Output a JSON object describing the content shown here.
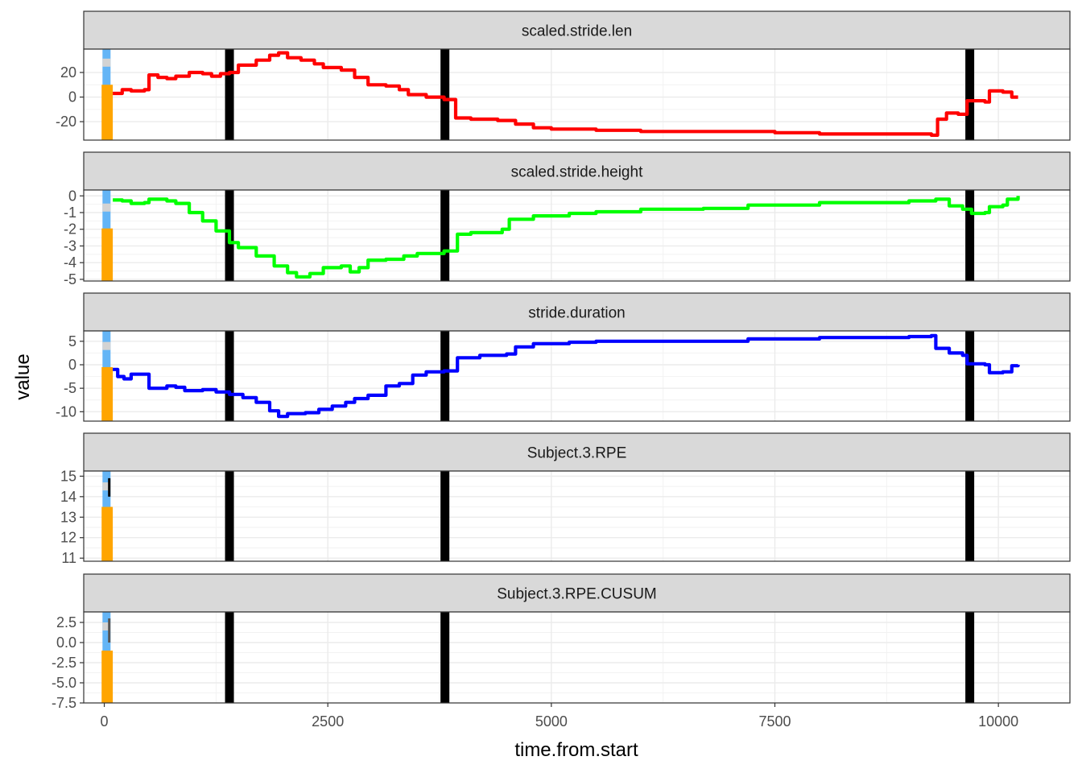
{
  "chart_data": {
    "type": "line",
    "layout": "faceted, vertical strips sharing the x axis",
    "xlabel": "time.from.start",
    "ylabel": "value",
    "x_ticks": [
      0,
      2500,
      5000,
      7500,
      10000
    ],
    "xlim": [
      -230,
      10800
    ],
    "grid": true,
    "theme": "bw",
    "legend": "none",
    "vertical_lines": {
      "color": "#000000",
      "x": [
        1400,
        3810,
        9680
      ]
    },
    "highlight_bars": {
      "blue": {
        "color": "#64b5f6",
        "x": 25
      },
      "orange": {
        "color": "#ffa500",
        "x_from": -30,
        "x_to": 95
      }
    },
    "panels": [
      {
        "title": "scaled.stride.len",
        "color": "#ff0000",
        "ylim": [
          -35,
          39
        ],
        "y_ticks": [
          20,
          0,
          -20
        ],
        "orange_top": 10,
        "marker": 28,
        "series": [
          {
            "x": 95,
            "y": 3
          },
          {
            "x": 200,
            "y": 6
          },
          {
            "x": 300,
            "y": 5
          },
          {
            "x": 450,
            "y": 6
          },
          {
            "x": 500,
            "y": 18
          },
          {
            "x": 600,
            "y": 16
          },
          {
            "x": 700,
            "y": 15
          },
          {
            "x": 800,
            "y": 17
          },
          {
            "x": 950,
            "y": 20
          },
          {
            "x": 1100,
            "y": 19
          },
          {
            "x": 1200,
            "y": 17
          },
          {
            "x": 1300,
            "y": 19
          },
          {
            "x": 1400,
            "y": 20
          },
          {
            "x": 1500,
            "y": 26
          },
          {
            "x": 1700,
            "y": 30
          },
          {
            "x": 1850,
            "y": 34
          },
          {
            "x": 1950,
            "y": 36
          },
          {
            "x": 2050,
            "y": 32
          },
          {
            "x": 2200,
            "y": 30
          },
          {
            "x": 2350,
            "y": 27
          },
          {
            "x": 2450,
            "y": 24
          },
          {
            "x": 2650,
            "y": 22
          },
          {
            "x": 2800,
            "y": 16
          },
          {
            "x": 2950,
            "y": 10
          },
          {
            "x": 3150,
            "y": 9
          },
          {
            "x": 3300,
            "y": 6
          },
          {
            "x": 3400,
            "y": 2
          },
          {
            "x": 3600,
            "y": 0
          },
          {
            "x": 3800,
            "y": -2
          },
          {
            "x": 3930,
            "y": -17
          },
          {
            "x": 4100,
            "y": -18
          },
          {
            "x": 4400,
            "y": -19
          },
          {
            "x": 4600,
            "y": -22
          },
          {
            "x": 4800,
            "y": -25
          },
          {
            "x": 5000,
            "y": -26
          },
          {
            "x": 5500,
            "y": -27
          },
          {
            "x": 6000,
            "y": -28
          },
          {
            "x": 7000,
            "y": -28
          },
          {
            "x": 7500,
            "y": -29
          },
          {
            "x": 8000,
            "y": -30
          },
          {
            "x": 8500,
            "y": -30
          },
          {
            "x": 9000,
            "y": -30
          },
          {
            "x": 9250,
            "y": -31
          },
          {
            "x": 9320,
            "y": -18
          },
          {
            "x": 9420,
            "y": -13
          },
          {
            "x": 9550,
            "y": -14
          },
          {
            "x": 9650,
            "y": -3
          },
          {
            "x": 9850,
            "y": -4
          },
          {
            "x": 9900,
            "y": 5
          },
          {
            "x": 10050,
            "y": 4
          },
          {
            "x": 10150,
            "y": 0
          },
          {
            "x": 10220,
            "y": 0
          }
        ]
      },
      {
        "title": "scaled.stride.height",
        "color": "#00ff00",
        "ylim": [
          -5.1,
          0.35
        ],
        "y_ticks": [
          0,
          -1,
          -2,
          -3,
          -4,
          -5
        ],
        "orange_top": -1.95,
        "marker": -0.7,
        "series": [
          {
            "x": 95,
            "y": -0.25
          },
          {
            "x": 200,
            "y": -0.3
          },
          {
            "x": 300,
            "y": -0.45
          },
          {
            "x": 450,
            "y": -0.4
          },
          {
            "x": 500,
            "y": -0.2
          },
          {
            "x": 700,
            "y": -0.3
          },
          {
            "x": 800,
            "y": -0.45
          },
          {
            "x": 950,
            "y": -1.0
          },
          {
            "x": 1100,
            "y": -1.5
          },
          {
            "x": 1250,
            "y": -2.1
          },
          {
            "x": 1400,
            "y": -2.8
          },
          {
            "x": 1500,
            "y": -3.1
          },
          {
            "x": 1700,
            "y": -3.6
          },
          {
            "x": 1900,
            "y": -4.2
          },
          {
            "x": 2050,
            "y": -4.6
          },
          {
            "x": 2150,
            "y": -4.85
          },
          {
            "x": 2300,
            "y": -4.65
          },
          {
            "x": 2450,
            "y": -4.3
          },
          {
            "x": 2650,
            "y": -4.2
          },
          {
            "x": 2750,
            "y": -4.55
          },
          {
            "x": 2850,
            "y": -4.3
          },
          {
            "x": 2950,
            "y": -3.85
          },
          {
            "x": 3150,
            "y": -3.8
          },
          {
            "x": 3350,
            "y": -3.6
          },
          {
            "x": 3500,
            "y": -3.45
          },
          {
            "x": 3800,
            "y": -3.3
          },
          {
            "x": 3950,
            "y": -2.3
          },
          {
            "x": 4100,
            "y": -2.2
          },
          {
            "x": 4450,
            "y": -2.0
          },
          {
            "x": 4530,
            "y": -1.4
          },
          {
            "x": 4800,
            "y": -1.2
          },
          {
            "x": 5200,
            "y": -1.05
          },
          {
            "x": 5500,
            "y": -0.95
          },
          {
            "x": 6000,
            "y": -0.8
          },
          {
            "x": 6700,
            "y": -0.75
          },
          {
            "x": 7200,
            "y": -0.55
          },
          {
            "x": 8000,
            "y": -0.4
          },
          {
            "x": 9000,
            "y": -0.3
          },
          {
            "x": 9300,
            "y": -0.2
          },
          {
            "x": 9450,
            "y": -0.6
          },
          {
            "x": 9600,
            "y": -0.8
          },
          {
            "x": 9700,
            "y": -1.05
          },
          {
            "x": 9850,
            "y": -1.0
          },
          {
            "x": 9900,
            "y": -0.65
          },
          {
            "x": 10050,
            "y": -0.55
          },
          {
            "x": 10100,
            "y": -0.2
          },
          {
            "x": 10220,
            "y": 0.0
          }
        ]
      },
      {
        "title": "stride.duration",
        "color": "#0000ff",
        "ylim": [
          -12,
          7.2
        ],
        "y_ticks": [
          5,
          0,
          -5,
          -10
        ],
        "orange_top": -0.5,
        "marker": 4,
        "series": [
          {
            "x": 95,
            "y": -1.0
          },
          {
            "x": 150,
            "y": -2.5
          },
          {
            "x": 220,
            "y": -3.0
          },
          {
            "x": 300,
            "y": -2.0
          },
          {
            "x": 450,
            "y": -2.0
          },
          {
            "x": 500,
            "y": -5.0
          },
          {
            "x": 700,
            "y": -4.5
          },
          {
            "x": 800,
            "y": -4.8
          },
          {
            "x": 900,
            "y": -5.5
          },
          {
            "x": 1100,
            "y": -5.3
          },
          {
            "x": 1250,
            "y": -5.8
          },
          {
            "x": 1400,
            "y": -6.3
          },
          {
            "x": 1550,
            "y": -7.0
          },
          {
            "x": 1700,
            "y": -8.0
          },
          {
            "x": 1850,
            "y": -9.8
          },
          {
            "x": 1950,
            "y": -11.0
          },
          {
            "x": 2050,
            "y": -10.4
          },
          {
            "x": 2250,
            "y": -10.2
          },
          {
            "x": 2400,
            "y": -9.5
          },
          {
            "x": 2550,
            "y": -8.8
          },
          {
            "x": 2700,
            "y": -8.0
          },
          {
            "x": 2800,
            "y": -7.2
          },
          {
            "x": 2950,
            "y": -6.5
          },
          {
            "x": 3150,
            "y": -4.5
          },
          {
            "x": 3300,
            "y": -4.0
          },
          {
            "x": 3450,
            "y": -2.2
          },
          {
            "x": 3600,
            "y": -1.5
          },
          {
            "x": 3800,
            "y": -1.3
          },
          {
            "x": 3950,
            "y": 1.5
          },
          {
            "x": 4200,
            "y": 2.0
          },
          {
            "x": 4500,
            "y": 2.3
          },
          {
            "x": 4600,
            "y": 3.8
          },
          {
            "x": 4800,
            "y": 4.5
          },
          {
            "x": 5200,
            "y": 4.8
          },
          {
            "x": 5500,
            "y": 5.0
          },
          {
            "x": 6000,
            "y": 5.0
          },
          {
            "x": 6700,
            "y": 5.0
          },
          {
            "x": 7200,
            "y": 5.5
          },
          {
            "x": 8000,
            "y": 5.8
          },
          {
            "x": 9000,
            "y": 6.0
          },
          {
            "x": 9250,
            "y": 6.2
          },
          {
            "x": 9300,
            "y": 3.5
          },
          {
            "x": 9450,
            "y": 2.5
          },
          {
            "x": 9600,
            "y": 2.0
          },
          {
            "x": 9650,
            "y": 0.2
          },
          {
            "x": 9850,
            "y": 0.0
          },
          {
            "x": 9900,
            "y": -1.7
          },
          {
            "x": 10050,
            "y": -1.5
          },
          {
            "x": 10150,
            "y": -0.2
          },
          {
            "x": 10220,
            "y": 0.0
          }
        ]
      },
      {
        "title": "Subject.3.RPE",
        "color": "#000000",
        "ylim": [
          10.85,
          15.25
        ],
        "y_ticks": [
          15,
          14,
          13,
          12,
          11
        ],
        "orange_top": 13.5,
        "marker": 14.5,
        "series": [
          {
            "x": 55,
            "y": 14.9
          },
          {
            "x": 55,
            "y": 14.0
          }
        ]
      },
      {
        "title": "Subject.3.RPE.CUSUM",
        "color": "#555555",
        "ylim": [
          -7.5,
          3.8
        ],
        "y_ticks": [
          2.5,
          0.0,
          -2.5,
          -5.0,
          -7.5
        ],
        "y_tick_labels": [
          "2.5",
          "0.0",
          "-2.5",
          "-5.0",
          "-7.5"
        ],
        "orange_top": -1,
        "marker": 2,
        "series": [
          {
            "x": 55,
            "y": 3.0
          },
          {
            "x": 55,
            "y": 0.0
          }
        ]
      }
    ]
  }
}
